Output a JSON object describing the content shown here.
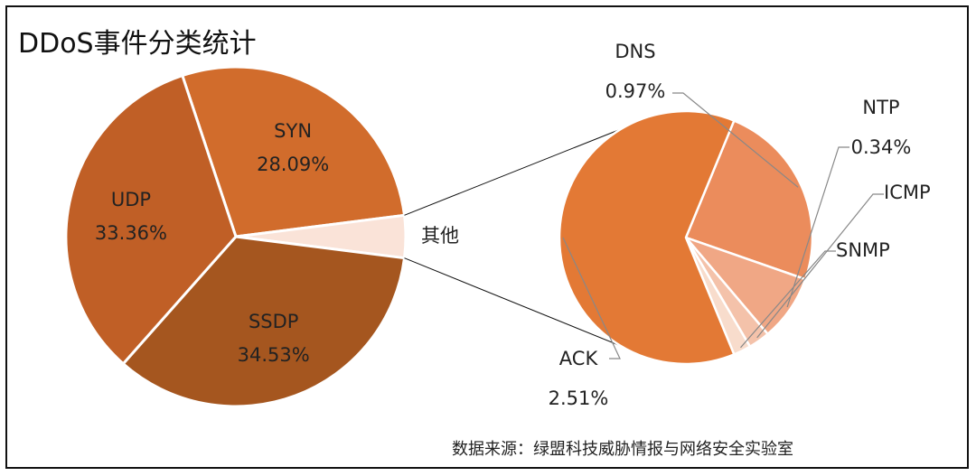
{
  "colors": {
    "UDP": "#C05F26",
    "SYN": "#D16C2C",
    "SSDP": "#A5561F",
    "其他": "#FAE3D8",
    "ACK": "#E37935",
    "DNS": "#EB8C5C",
    "NTP": "#F0A785",
    "ICMP": "#F4C2AA",
    "SNMP": "#F8DCCC",
    "connector": "#111111",
    "leader": "#888888"
  },
  "chart_data": {
    "type": "pie",
    "title": "DDoS事件分类统计",
    "source": "数据来源：绿盟科技威胁情报与网络安全实验室",
    "main_pie": [
      {
        "label": "SYN",
        "value": 28.09,
        "value_text": "28.09%"
      },
      {
        "label": "其他",
        "value": 4.02,
        "value_text": ""
      },
      {
        "label": "SSDP",
        "value": 34.53,
        "value_text": "34.53%"
      },
      {
        "label": "UDP",
        "value": 33.36,
        "value_text": "33.36%"
      }
    ],
    "secondary_pie": {
      "parent": "其他",
      "slices": [
        {
          "label": "DNS",
          "value": 0.97,
          "value_text": "0.97%"
        },
        {
          "label": "NTP",
          "value": 0.34,
          "value_text": "0.34%"
        },
        {
          "label": "ICMP",
          "value": 0.11,
          "value_text": ""
        },
        {
          "label": "SNMP",
          "value": 0.09,
          "value_text": ""
        },
        {
          "label": "ACK",
          "value": 2.51,
          "value_text": "2.51%"
        }
      ]
    }
  }
}
